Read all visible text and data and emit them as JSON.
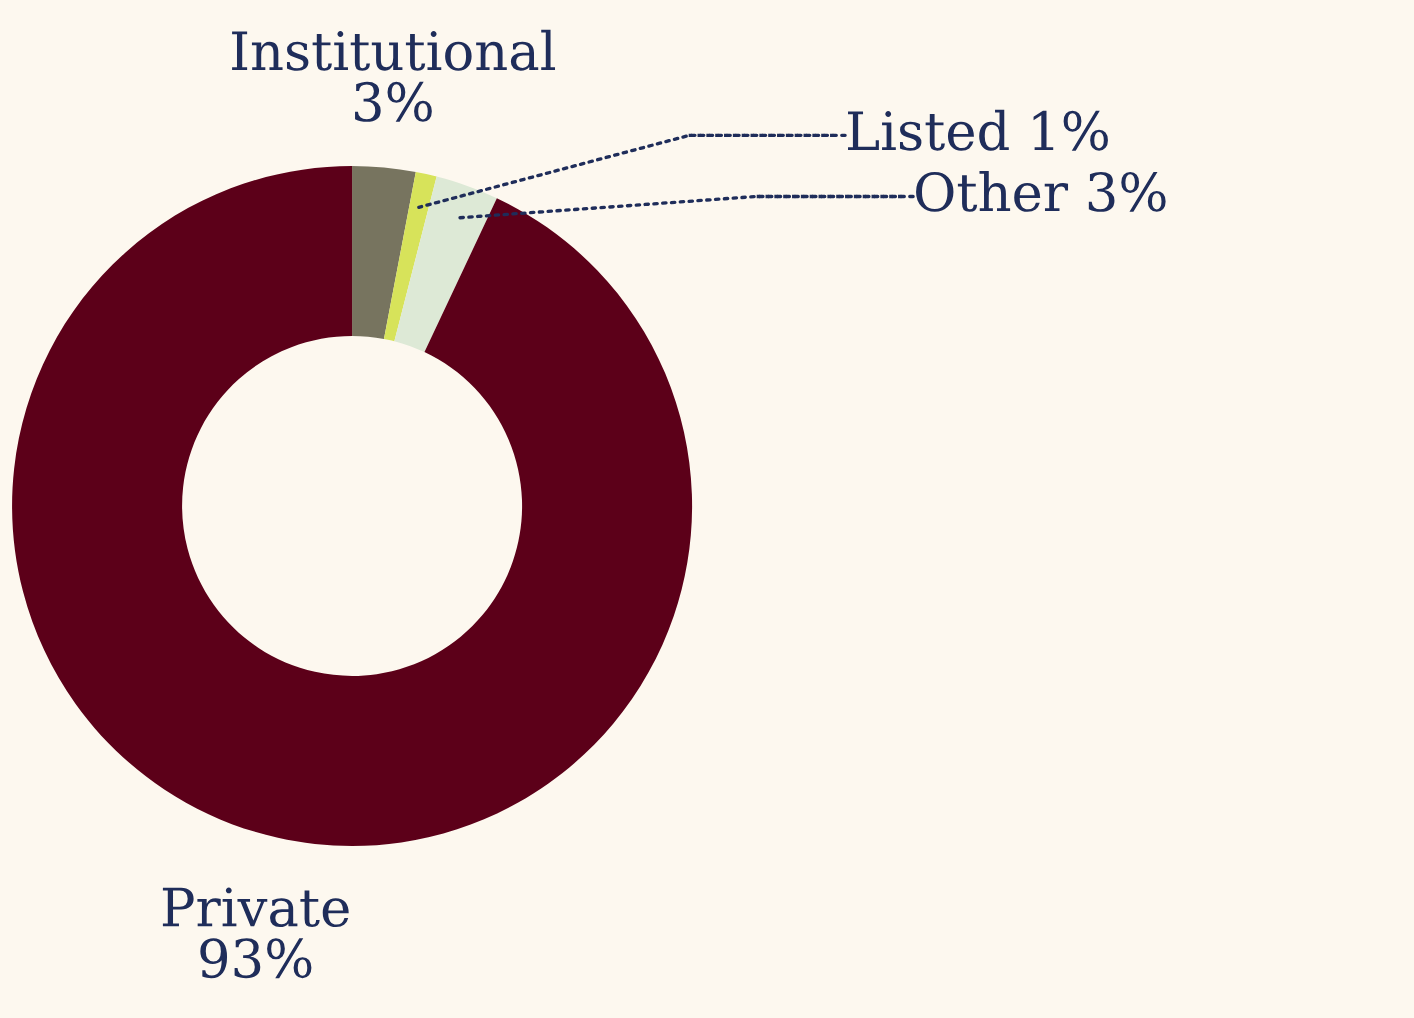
{
  "chart_data": {
    "type": "donut",
    "categories": [
      "Institutional",
      "Listed",
      "Other",
      "Private"
    ],
    "values": [
      3,
      1,
      3,
      93
    ],
    "value_labels": [
      "3%",
      "1%",
      "3%",
      "93%"
    ],
    "colors": [
      "#77745f",
      "#d7e35a",
      "#dde9d6",
      "#5c0019"
    ]
  }
}
